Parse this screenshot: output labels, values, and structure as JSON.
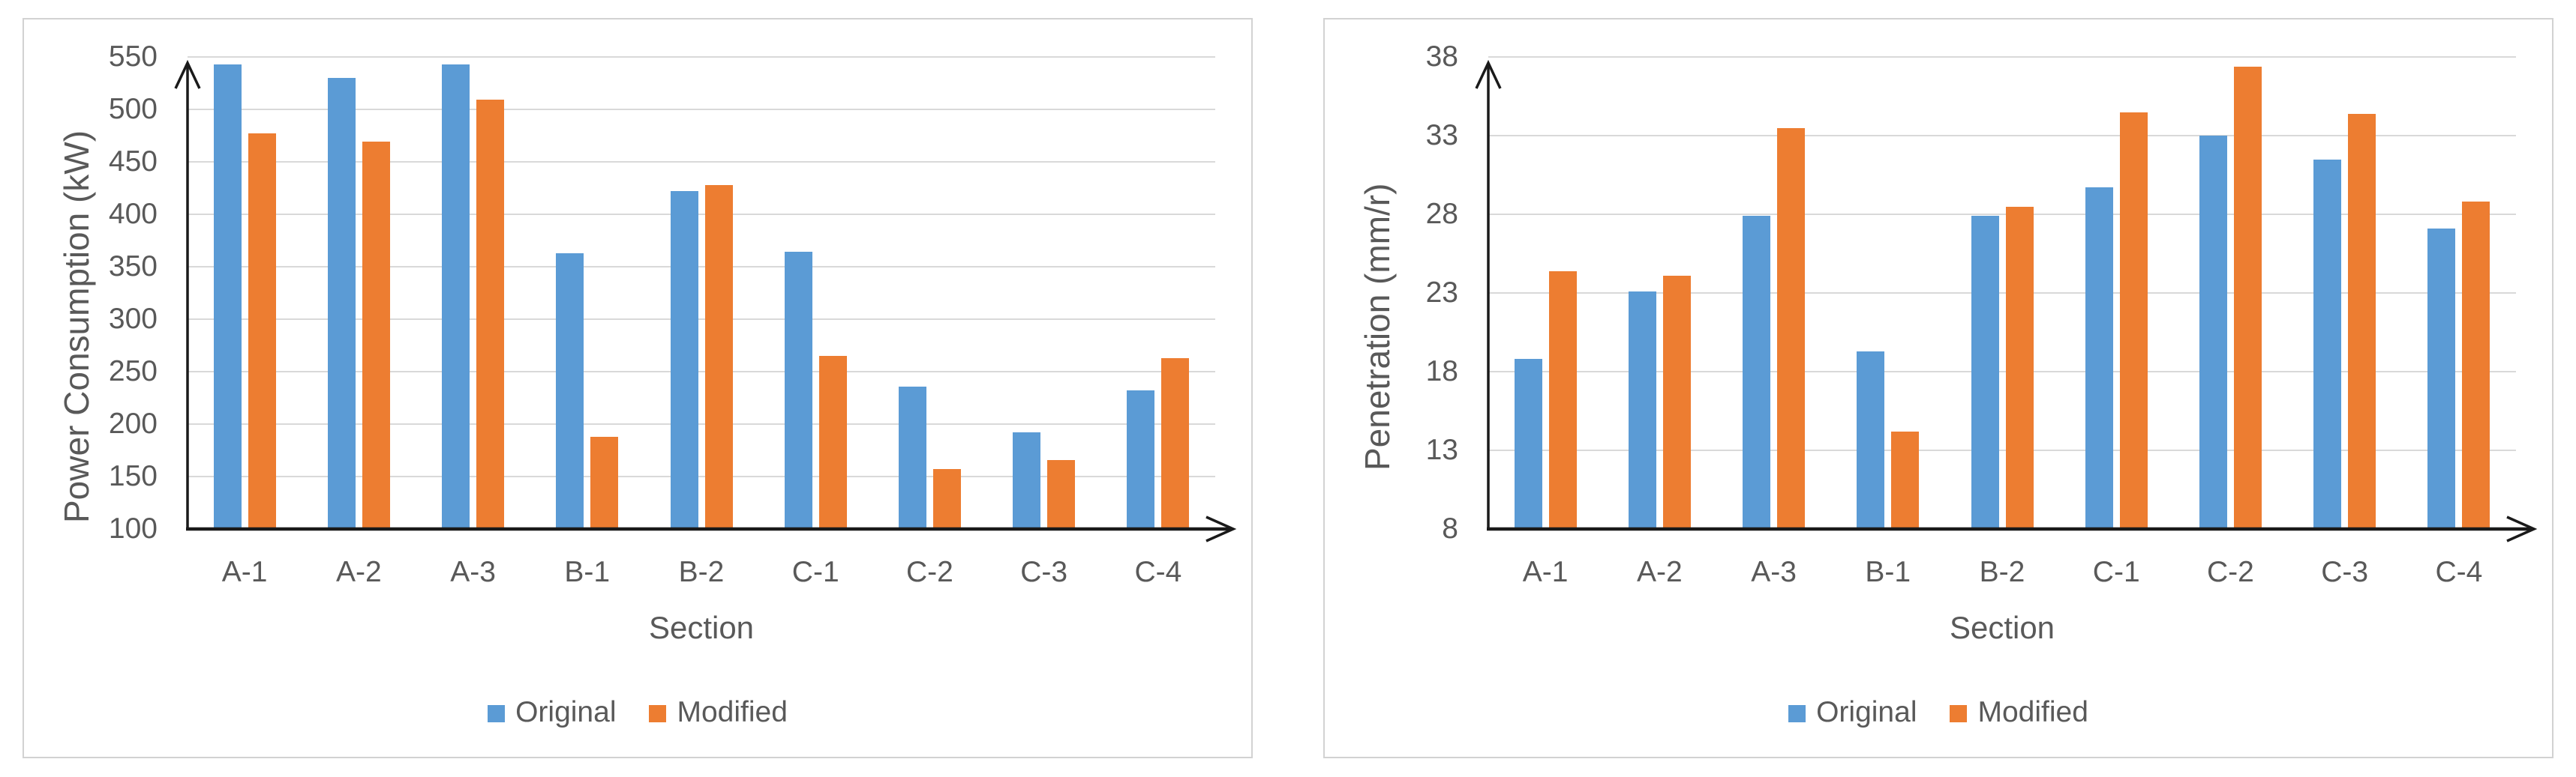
{
  "page": {
    "background": "#ffffff",
    "description": "Two side-by-side clustered column charts comparing Original vs Modified by Section"
  },
  "colors": {
    "original_series": "#5B9BD5",
    "modified_series": "#ED7D31",
    "gridline": "#d9d9d9",
    "axis_line": "#1a1a1a",
    "text": "#595959",
    "panel_border": "#d2d2d2"
  },
  "chart_data": [
    {
      "type": "bar",
      "title": "",
      "xlabel": "Section",
      "ylabel": "Power Consumption (kW)",
      "categories": [
        "A-1",
        "A-2",
        "A-3",
        "B-1",
        "B-2",
        "C-1",
        "C-2",
        "C-3",
        "C-4"
      ],
      "series": [
        {
          "name": "Original",
          "color": "#5B9BD5",
          "values": [
            543,
            530,
            543,
            363,
            422,
            364,
            236,
            192,
            232
          ]
        },
        {
          "name": "Modified",
          "color": "#ED7D31",
          "values": [
            477,
            469,
            509,
            188,
            428,
            265,
            157,
            166,
            263
          ]
        }
      ],
      "ylim": [
        100,
        550
      ],
      "yticks": [
        100,
        150,
        200,
        250,
        300,
        350,
        400,
        450,
        500,
        550
      ],
      "grid": true,
      "legend_position": "bottom",
      "axis_arrows": true
    },
    {
      "type": "bar",
      "title": "",
      "xlabel": "Section",
      "ylabel": "Penetration (mm/r)",
      "categories": [
        "A-1",
        "A-2",
        "A-3",
        "B-1",
        "B-2",
        "C-1",
        "C-2",
        "C-3",
        "C-4"
      ],
      "series": [
        {
          "name": "Original",
          "color": "#5B9BD5",
          "values": [
            18.8,
            23.1,
            27.9,
            19.3,
            27.9,
            29.7,
            33.0,
            31.5,
            27.1
          ]
        },
        {
          "name": "Modified",
          "color": "#ED7D31",
          "values": [
            24.4,
            24.1,
            33.5,
            14.2,
            28.5,
            34.5,
            37.4,
            34.4,
            28.8
          ]
        }
      ],
      "ylim": [
        8,
        38
      ],
      "yticks": [
        8,
        13,
        18,
        23,
        28,
        33,
        38
      ],
      "grid": true,
      "legend_position": "bottom",
      "axis_arrows": true
    }
  ]
}
